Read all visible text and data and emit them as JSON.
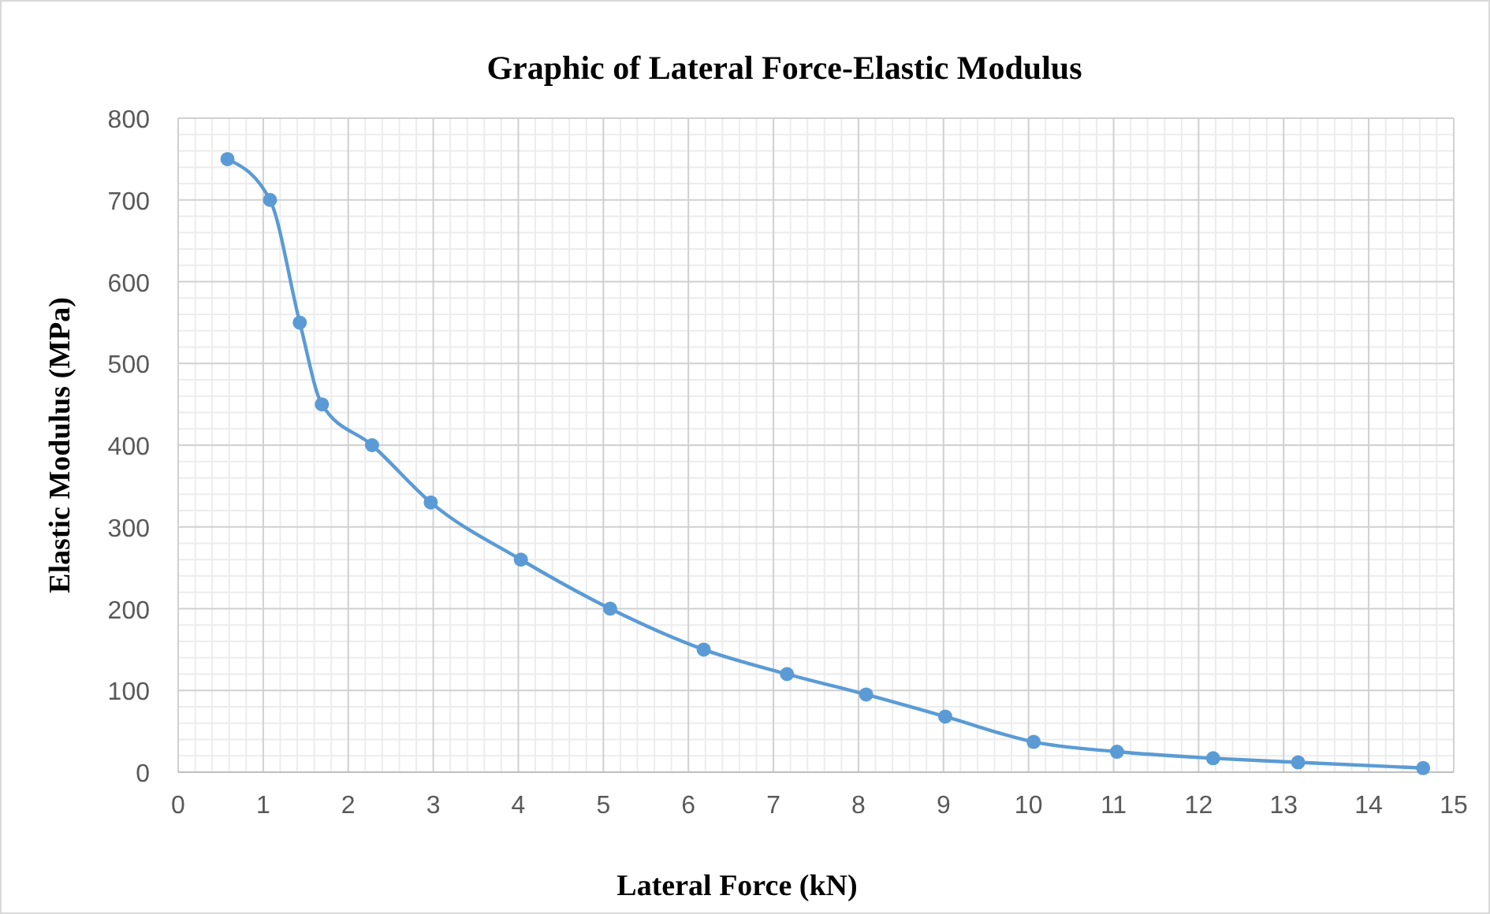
{
  "chart_data": {
    "type": "line",
    "title": "Graphic of Lateral Force-Elastic Modulus",
    "xlabel": "Lateral Force (kN)",
    "ylabel": "Elastic Modulus (MPa)",
    "x": [
      0.58,
      1.08,
      1.43,
      1.69,
      2.28,
      2.97,
      4.03,
      5.08,
      6.18,
      7.16,
      8.09,
      9.02,
      10.06,
      11.04,
      12.17,
      13.17,
      14.64
    ],
    "series": [
      {
        "color": "#5b9bd5",
        "values": [
          750,
          700,
          550,
          450,
          400,
          330,
          260,
          200,
          150,
          120,
          95,
          68,
          37,
          25,
          17,
          12,
          5
        ]
      }
    ],
    "xlim": [
      0,
      15
    ],
    "xticks": [
      0,
      1,
      2,
      3,
      4,
      5,
      6,
      7,
      8,
      9,
      10,
      11,
      12,
      13,
      14,
      15
    ],
    "ylim": [
      0,
      800
    ],
    "yticks": [
      0,
      100,
      200,
      300,
      400,
      500,
      600,
      700,
      800
    ],
    "grid": true,
    "marker": "circle",
    "line_style": "solid"
  }
}
